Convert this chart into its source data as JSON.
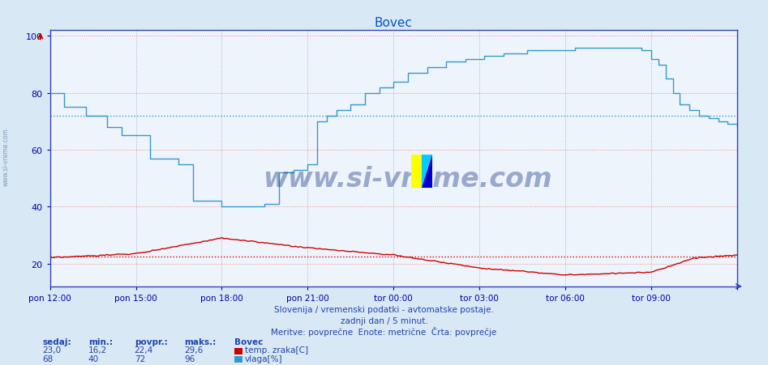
{
  "title": "Bovec",
  "title_color": "#0055cc",
  "bg_color": "#d8e8f4",
  "plot_bg_color": "#eef4fb",
  "xlabel_color": "#0000aa",
  "y_ticks": [
    20,
    40,
    60,
    80,
    100
  ],
  "ylim": [
    12,
    102
  ],
  "xlim_n": 289,
  "x_ticks_idx": [
    0,
    36,
    72,
    108,
    144,
    180,
    216,
    252,
    288
  ],
  "x_tick_labels": [
    "pon 12:00",
    "pon 15:00",
    "pon 18:00",
    "pon 21:00",
    "tor 00:00",
    "tor 03:00",
    "tor 06:00",
    "tor 09:00",
    ""
  ],
  "temp_avg": 22.4,
  "vlaga_avg": 72,
  "temp_color": "#cc0000",
  "vlaga_color": "#3399cc",
  "grid_h_color": "#ee8888",
  "grid_v_color": "#aaaacc",
  "footer_line1": "Slovenija / vremenski podatki - avtomatske postaje.",
  "footer_line2": "zadnji dan / 5 minut.",
  "footer_line3": "Meritve: povprečne  Enote: metrične  Črta: povprečje",
  "footer_color": "#2244aa",
  "legend_title": "Bovec",
  "legend_items": [
    {
      "label": "temp. zraka[C]",
      "color": "#cc0000"
    },
    {
      "label": "vlaga[%]",
      "color": "#3399cc"
    }
  ],
  "stats_headers": [
    "sedaj:",
    "min.:",
    "povpr.:",
    "maks.:"
  ],
  "stats_temp": [
    23.0,
    16.2,
    22.4,
    29.6
  ],
  "stats_vlaga": [
    68,
    40,
    72,
    96
  ],
  "watermark": "www.si-vreme.com",
  "watermark_color": "#1a3a8a",
  "side_text": "www.si-vreme.com",
  "side_text_color": "#6688aa",
  "logo_yellow": "#ffff00",
  "logo_cyan": "#00ccff",
  "logo_blue": "#0000cc"
}
